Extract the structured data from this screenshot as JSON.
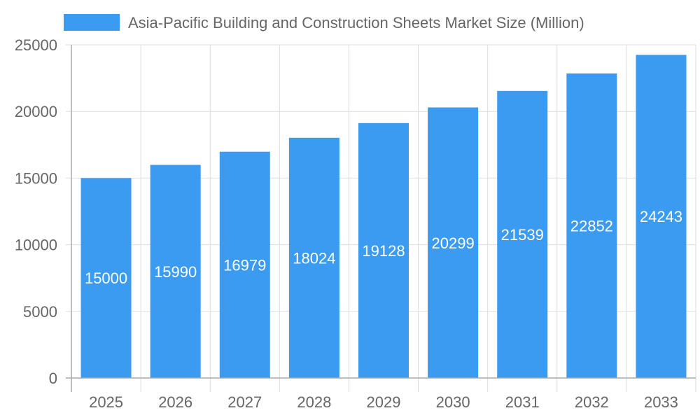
{
  "chart_data": {
    "type": "bar",
    "title": "",
    "xlabel": "",
    "ylabel": "",
    "categories": [
      "2025",
      "2026",
      "2027",
      "2028",
      "2029",
      "2030",
      "2031",
      "2032",
      "2033"
    ],
    "series": [
      {
        "name": "Asia-Pacific Building and Construction Sheets Market Size (Million)",
        "values": [
          15000,
          15990,
          16979,
          18024,
          19128,
          20299,
          21539,
          22852,
          24243
        ],
        "color": "#3a9bf0"
      }
    ],
    "ylim": [
      0,
      25000
    ],
    "yticks": [
      0,
      5000,
      10000,
      15000,
      20000,
      25000
    ],
    "grid": true,
    "legend": "top",
    "data_labels": true
  }
}
